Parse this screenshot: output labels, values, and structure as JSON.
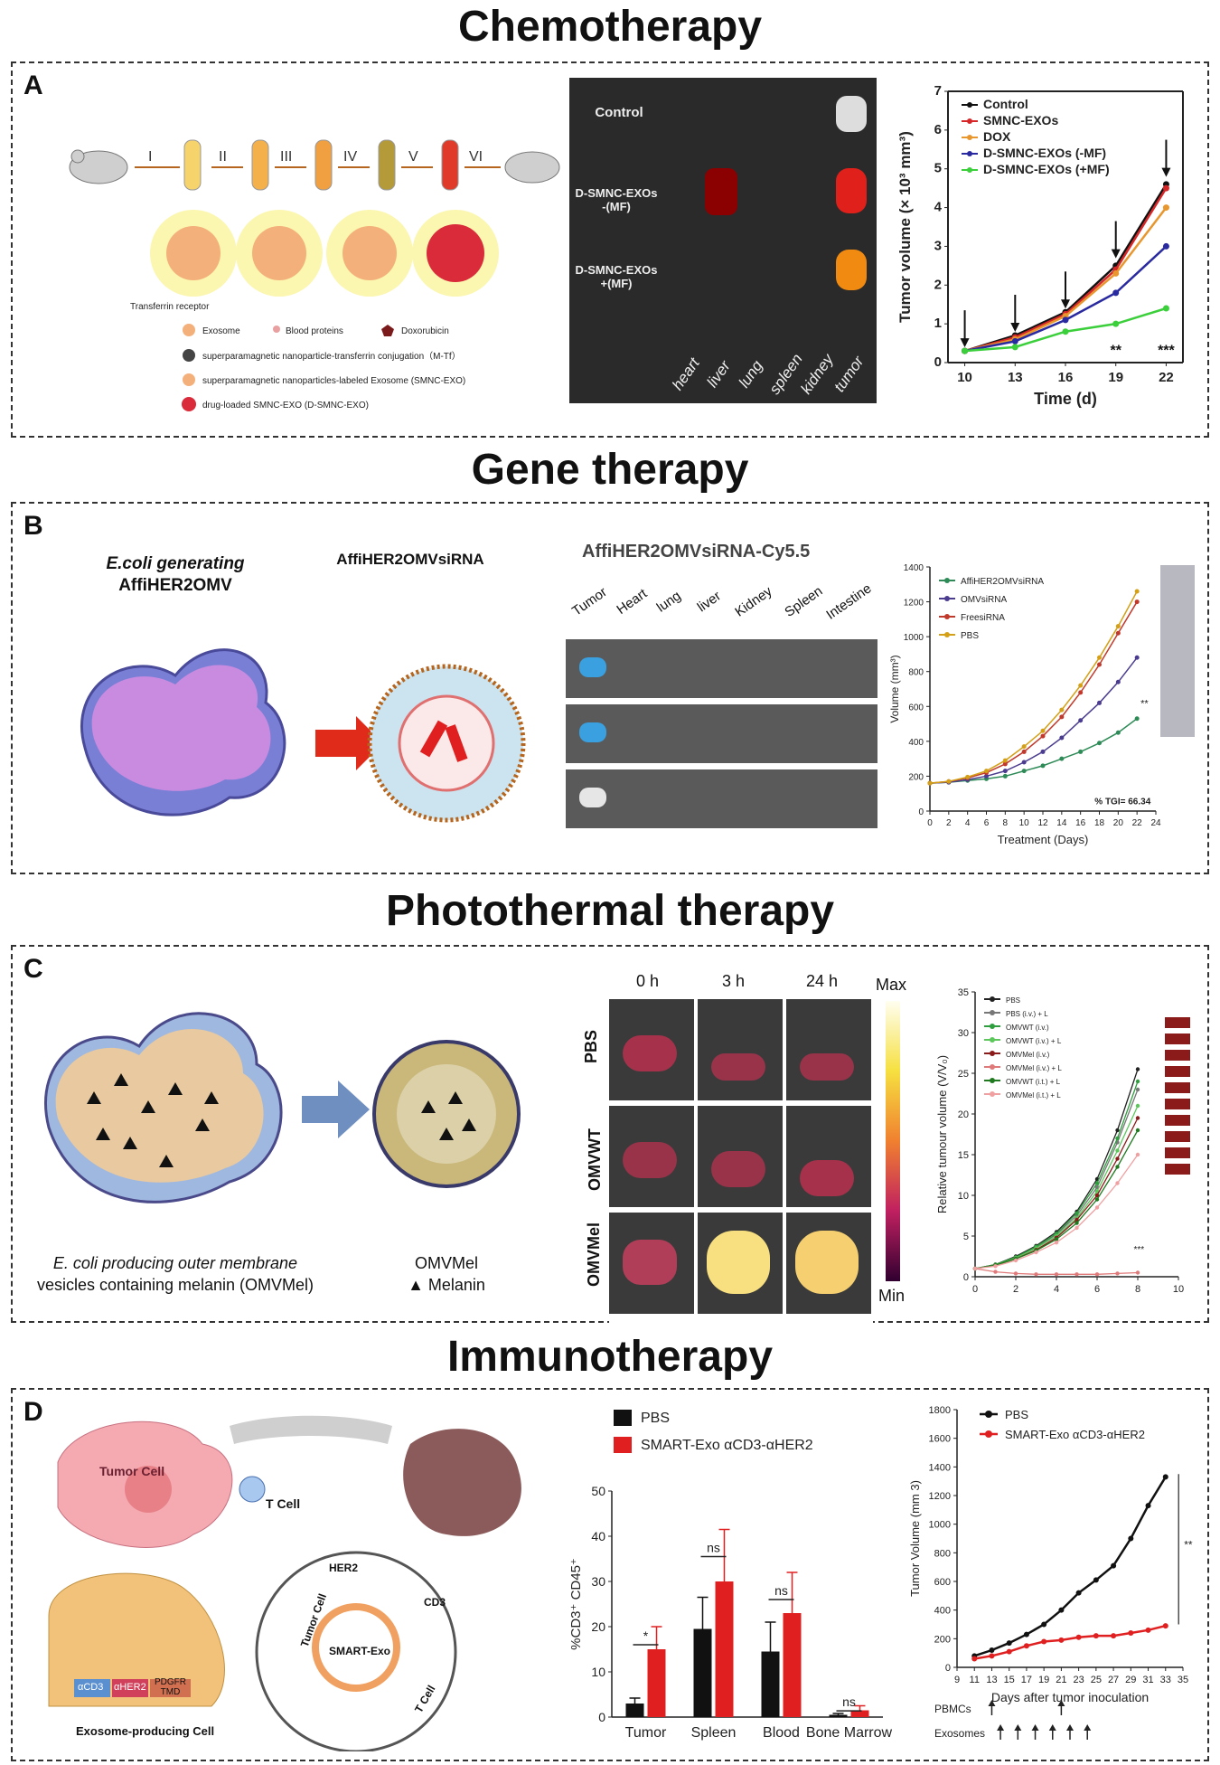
{
  "titles": {
    "chemo": "Chemotherapy",
    "gene": "Gene therapy",
    "photo": "Photothermal therapy",
    "immuno": "Immunotherapy"
  },
  "panels": {
    "A": {
      "letter": "A",
      "steps": [
        "I",
        "II",
        "III",
        "IV",
        "V",
        "VI"
      ],
      "legend": {
        "transferrin": "Transferrin receptor",
        "exosome": "Exosome",
        "blood": "Blood proteins",
        "dox": "Doxorubicin",
        "mtf": "superparamagnetic nanoparticle-transferrin conjugation（M-Tf）",
        "smnc": "superparamagnetic nanoparticles-labeled Exosome (SMNC-EXO)",
        "dsmnc": "drug-loaded SMNC-EXO (D-SMNC-EXO)"
      },
      "imaging_rows": [
        "Control",
        "D-SMNC-EXOs\n-(MF)",
        "D-SMNC-EXOs\n+(MF)"
      ],
      "organs": [
        "heart",
        "liver",
        "lung",
        "spleen",
        "kidney",
        "tumor"
      ],
      "chart_data": {
        "type": "line",
        "xlabel": "Time (d)",
        "ylabel": "Tumor volume (× 10³ mm³)",
        "x": [
          10,
          13,
          16,
          19,
          22
        ],
        "xlim": [
          9,
          23
        ],
        "ylim": [
          0,
          7
        ],
        "yticks": [
          0,
          1,
          2,
          3,
          4,
          5,
          6,
          7
        ],
        "series": [
          {
            "name": "Control",
            "color": "#111111",
            "values": [
              0.3,
              0.7,
              1.3,
              2.5,
              4.6
            ]
          },
          {
            "name": "SMNC-EXOs",
            "color": "#d62728",
            "values": [
              0.3,
              0.65,
              1.25,
              2.4,
              4.5
            ]
          },
          {
            "name": "DOX",
            "color": "#e8962e",
            "values": [
              0.3,
              0.6,
              1.2,
              2.3,
              4.0
            ]
          },
          {
            "name": "D-SMNC-EXOs (-MF)",
            "color": "#2a2aa0",
            "values": [
              0.3,
              0.55,
              1.1,
              1.8,
              3.0
            ]
          },
          {
            "name": "D-SMNC-EXOs (+MF)",
            "color": "#3bcf3b",
            "values": [
              0.3,
              0.4,
              0.8,
              1.0,
              1.4
            ]
          }
        ],
        "annotations": [
          {
            "x": 19,
            "text": "**"
          },
          {
            "x": 22,
            "text": "***"
          }
        ]
      }
    },
    "B": {
      "letter": "B",
      "ecoli_line1": "E.coli generating",
      "ecoli_line2": "AffiHER2OMV",
      "omv_label": "AffiHER2OMVsiRNA",
      "imaging_title": "AffiHER2OMVsiRNA-Cy5.5",
      "organs": [
        "Tumor",
        "Heart",
        "lung",
        "liver",
        "Kidney",
        "Spleen",
        "Intestine"
      ],
      "chart_data": {
        "type": "line",
        "xlabel": "Treatment (Days)",
        "ylabel": "Volume (mm³)",
        "x": [
          0,
          2,
          4,
          6,
          8,
          10,
          12,
          14,
          16,
          18,
          20,
          22
        ],
        "xticks": [
          0,
          2,
          4,
          6,
          8,
          10,
          12,
          14,
          16,
          18,
          20,
          22,
          24
        ],
        "xlim": [
          0,
          24
        ],
        "ylim": [
          0,
          1400
        ],
        "yticks": [
          0,
          200,
          400,
          600,
          800,
          1000,
          1200,
          1400
        ],
        "series": [
          {
            "name": "AffiHER2OMVsiRNA",
            "color": "#2e8b57",
            "values": [
              160,
              165,
              175,
              185,
              200,
              230,
              260,
              300,
              340,
              390,
              450,
              530
            ]
          },
          {
            "name": "OMVsiRNA",
            "color": "#4b3c8f",
            "values": [
              160,
              165,
              180,
              200,
              230,
              280,
              340,
              420,
              520,
              620,
              740,
              880
            ]
          },
          {
            "name": "FreesiRNA",
            "color": "#c0392b",
            "values": [
              160,
              170,
              190,
              220,
              270,
              340,
              430,
              540,
              680,
              840,
              1020,
              1200
            ]
          },
          {
            "name": "PBS",
            "color": "#d4a017",
            "values": [
              160,
              170,
              195,
              230,
              290,
              370,
              460,
              580,
              720,
              880,
              1060,
              1260
            ]
          }
        ],
        "annotations": [
          {
            "text": "**"
          },
          {
            "text": "% TGI= 66.34"
          }
        ]
      }
    },
    "C": {
      "letter": "C",
      "caption1": "E. coli producing outer membrane",
      "caption2": "vesicles containing melanin (OMVMel)",
      "omv_label": "OMVMel",
      "melanin_label": "▲ Melanin",
      "times": [
        "0 h",
        "3 h",
        "24 h"
      ],
      "rows": [
        "PBS",
        "OMVWT",
        "OMVMel"
      ],
      "scale_max": "Max",
      "scale_min": "Min",
      "chart_data": {
        "type": "line",
        "xlabel": "",
        "ylabel": "Relative tumour volume (V/V₀)",
        "x": [
          0,
          1,
          2,
          3,
          4,
          5,
          6,
          7,
          8
        ],
        "xticks": [
          0,
          2,
          4,
          6,
          8,
          10
        ],
        "xlim": [
          0,
          10
        ],
        "ylim": [
          0,
          35
        ],
        "yticks": [
          0,
          5,
          10,
          15,
          20,
          25,
          30,
          35
        ],
        "series": [
          {
            "name": "PBS",
            "color": "#222222",
            "values": [
              1,
              1.5,
              2.5,
              3.8,
              5.5,
              8,
              12,
              18,
              25.5
            ]
          },
          {
            "name": "PBS (i.v.) + L",
            "color": "#777777",
            "values": [
              1,
              1.4,
              2.4,
              3.6,
              5.2,
              7.5,
              11,
              16.5,
              23
            ]
          },
          {
            "name": "OMVWT (i.v.)",
            "color": "#2e9e3e",
            "values": [
              1,
              1.5,
              2.4,
              3.7,
              5.3,
              7.8,
              11.5,
              17,
              24
            ]
          },
          {
            "name": "OMVWT (i.v.) + L",
            "color": "#5cc85c",
            "values": [
              1,
              1.4,
              2.3,
              3.5,
              5,
              7.2,
              10.5,
              15.5,
              21
            ]
          },
          {
            "name": "OMVMel (i.v.)",
            "color": "#8b1a1a",
            "values": [
              1,
              1.4,
              2.2,
              3.3,
              4.8,
              7,
              10,
              14.5,
              19.5
            ]
          },
          {
            "name": "OMVMel (i.v.) + L",
            "color": "#e07a7a",
            "values": [
              1,
              0.6,
              0.4,
              0.3,
              0.3,
              0.3,
              0.3,
              0.4,
              0.5
            ]
          },
          {
            "name": "OMVWT (i.t.) + L",
            "color": "#1f7a1f",
            "values": [
              1,
              1.4,
              2.2,
              3.2,
              4.6,
              6.6,
              9.5,
              13.5,
              18
            ]
          },
          {
            "name": "OMVMel (i.t.) + L",
            "color": "#f0a0a0",
            "values": [
              1,
              1.3,
              2,
              3,
              4.2,
              6,
              8.5,
              11.5,
              15
            ]
          }
        ],
        "annotations": [
          {
            "text": "***"
          }
        ]
      }
    },
    "D": {
      "letter": "D",
      "tumor_cell": "Tumor Cell",
      "t_cell": "T Cell",
      "producing_cell": "Exosome-producing Cell",
      "constructs": [
        "αCD3",
        "αHER2",
        "PDGFR TMD"
      ],
      "zoom_labels": {
        "tumor": "Tumor Cell",
        "her2": "HER2",
        "cd3": "CD3",
        "exo": "SMART-Exo",
        "tcell": "T Cell"
      },
      "bar_chart": {
        "type": "bar",
        "ylabel": "%CD3⁺ CD45⁺",
        "categories": [
          "Tumor",
          "Spleen",
          "Blood",
          "Bone Marrow"
        ],
        "ylim": [
          0,
          50
        ],
        "yticks": [
          0,
          10,
          20,
          30,
          40,
          50
        ],
        "series": [
          {
            "name": "PBS",
            "color": "#111111",
            "values": [
              3,
              19.5,
              14.5,
              0.5
            ],
            "err": [
              1.2,
              7,
              6.5,
              0.3
            ]
          },
          {
            "name": "SMART-Exo αCD3-αHER2",
            "color": "#e02020",
            "values": [
              15,
              30,
              23,
              1.5
            ],
            "err": [
              5,
              11.5,
              9,
              1
            ]
          }
        ],
        "significance": [
          "*",
          "ns",
          "ns",
          "ns"
        ]
      },
      "chart_data": {
        "type": "line",
        "xlabel": "Days after tumor inoculation",
        "ylabel": "Tumor Volume (mm 3)",
        "x": [
          11,
          13,
          15,
          17,
          19,
          21,
          23,
          25,
          27,
          29,
          31,
          33
        ],
        "xticks": [
          9,
          11,
          13,
          15,
          17,
          19,
          21,
          23,
          25,
          27,
          29,
          31,
          33,
          35
        ],
        "xlim": [
          9,
          35
        ],
        "ylim": [
          0,
          1800
        ],
        "yticks": [
          0,
          200,
          400,
          600,
          800,
          1000,
          1200,
          1400,
          1600,
          1800
        ],
        "series": [
          {
            "name": "PBS",
            "color": "#111111",
            "values": [
              80,
              120,
              170,
              230,
              300,
              400,
              520,
              610,
              710,
              900,
              1130,
              1330
            ]
          },
          {
            "name": "SMART-Exo αCD3-αHER2",
            "color": "#e02020",
            "values": [
              60,
              80,
              110,
              150,
              180,
              190,
              210,
              220,
              220,
              240,
              260,
              290
            ]
          }
        ],
        "annotations": [
          {
            "text": "**"
          }
        ],
        "schedule": {
          "pbmcs": "PBMCs",
          "exosomes": "Exosomes"
        }
      }
    }
  }
}
